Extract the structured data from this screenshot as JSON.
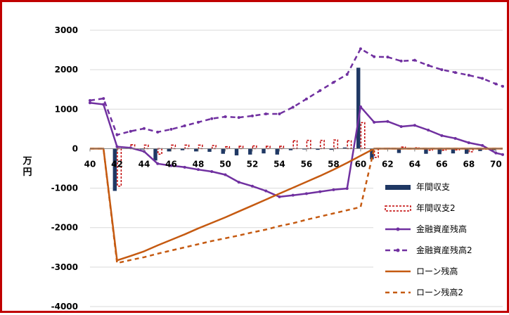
{
  "chart_data": {
    "type": "bar+line",
    "title": "",
    "ylabel": "万円",
    "xlim": [
      40,
      70.5
    ],
    "ylim": [
      -4000,
      3000
    ],
    "yticks": [
      3000,
      2000,
      1000,
      0,
      -1000,
      -2000,
      -3000,
      -4000
    ],
    "xticks": [
      40,
      42,
      44,
      46,
      48,
      50,
      52,
      54,
      56,
      58,
      60,
      62,
      64,
      66,
      68,
      70
    ],
    "grid": true,
    "legend_position": "right",
    "colors": {
      "bar1": "#1f3864",
      "bar2": "#c00000",
      "asset": "#7030a0",
      "loan": "#c55a11",
      "grid": "#d9d9d9",
      "frame": "#c00000"
    },
    "series": [
      {
        "name": "年間収支",
        "kind": "bar",
        "x": [
          40,
          41,
          42,
          43,
          44,
          45,
          46,
          47,
          48,
          49,
          50,
          51,
          52,
          53,
          54,
          55,
          56,
          57,
          58,
          59,
          60,
          61,
          62,
          63,
          64,
          65,
          66,
          67,
          68,
          69,
          70
        ],
        "y": [
          0,
          0,
          -1070,
          30,
          -20,
          -300,
          -70,
          -40,
          -70,
          -80,
          -130,
          -170,
          -150,
          -120,
          -150,
          -40,
          -20,
          -30,
          -30,
          30,
          2050,
          -270,
          20,
          -110,
          -10,
          -130,
          -140,
          -120,
          -130,
          -60,
          -40
        ]
      },
      {
        "name": "年間収支2",
        "kind": "bar",
        "x": [
          40,
          41,
          42,
          43,
          44,
          45,
          46,
          47,
          48,
          49,
          50,
          51,
          52,
          53,
          54,
          55,
          56,
          57,
          58,
          59,
          60,
          61,
          62,
          63,
          64,
          65,
          66,
          67,
          68,
          69,
          70
        ],
        "y": [
          0,
          0,
          -950,
          100,
          90,
          -140,
          90,
          90,
          90,
          80,
          50,
          60,
          70,
          60,
          60,
          200,
          210,
          210,
          220,
          200,
          660,
          -220,
          10,
          40,
          20,
          -40,
          -40,
          -30,
          -80,
          -10,
          0
        ]
      },
      {
        "name": "金融資産残高",
        "kind": "line",
        "x": [
          40,
          41,
          42,
          43,
          44,
          45,
          46,
          47,
          48,
          49,
          50,
          51,
          52,
          53,
          54,
          55,
          56,
          57,
          58,
          59,
          60,
          61,
          62,
          63,
          64,
          65,
          66,
          67,
          68,
          69,
          70,
          70.5
        ],
        "y": [
          1160,
          1120,
          50,
          20,
          -70,
          -380,
          -430,
          -470,
          -530,
          -580,
          -660,
          -850,
          -950,
          -1070,
          -1220,
          -1180,
          -1140,
          -1090,
          -1040,
          -1010,
          1060,
          670,
          690,
          560,
          590,
          470,
          330,
          260,
          150,
          80,
          -110,
          -150
        ]
      },
      {
        "name": "金融資産残高2",
        "kind": "line",
        "x": [
          40,
          41,
          42,
          43,
          44,
          45,
          46,
          47,
          48,
          49,
          50,
          51,
          52,
          53,
          54,
          55,
          56,
          57,
          58,
          59,
          60,
          61,
          62,
          63,
          64,
          65,
          66,
          67,
          68,
          69,
          70,
          70.5
        ],
        "y": [
          1220,
          1270,
          350,
          440,
          510,
          420,
          490,
          580,
          670,
          760,
          810,
          790,
          830,
          880,
          880,
          1050,
          1260,
          1470,
          1680,
          1880,
          2530,
          2330,
          2320,
          2220,
          2240,
          2110,
          2000,
          1930,
          1860,
          1780,
          1640,
          1580
        ]
      },
      {
        "name": "ローン残高",
        "kind": "line",
        "x": [
          40,
          41,
          42,
          43,
          44,
          45,
          46,
          47,
          48,
          49,
          50,
          51,
          52,
          53,
          54,
          55,
          56,
          57,
          58,
          59,
          60,
          61,
          62,
          63,
          64,
          65,
          66,
          67,
          68,
          69,
          70,
          70.5
        ],
        "y": [
          0,
          0,
          -2830,
          -2720,
          -2600,
          -2450,
          -2310,
          -2170,
          -2020,
          -1880,
          -1740,
          -1590,
          -1440,
          -1290,
          -1140,
          -990,
          -840,
          -690,
          -530,
          -360,
          -180,
          0,
          0,
          0,
          0,
          0,
          0,
          0,
          0,
          0,
          0,
          0
        ]
      },
      {
        "name": "ローン残高2",
        "kind": "line",
        "x": [
          40,
          41,
          42,
          43,
          44,
          45,
          46,
          47,
          48,
          49,
          50,
          51,
          52,
          53,
          54,
          55,
          56,
          57,
          58,
          59,
          60,
          61,
          62,
          63,
          64,
          65,
          66,
          67,
          68,
          69,
          70,
          70.5
        ],
        "y": [
          0,
          0,
          -2900,
          -2820,
          -2750,
          -2660,
          -2580,
          -2500,
          -2420,
          -2340,
          -2270,
          -2200,
          -2120,
          -2050,
          -1960,
          -1890,
          -1800,
          -1720,
          -1640,
          -1560,
          -1480,
          0,
          0,
          0,
          0,
          0,
          0,
          0,
          0,
          0,
          0,
          0
        ]
      }
    ]
  }
}
